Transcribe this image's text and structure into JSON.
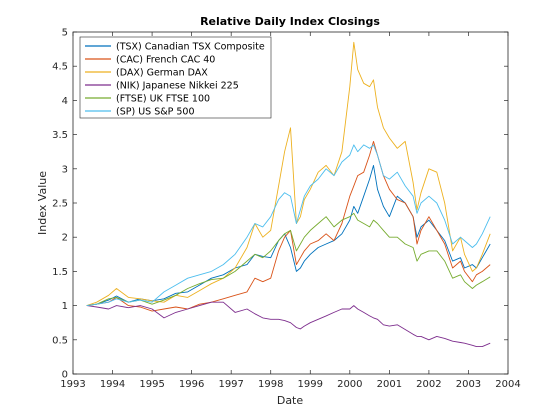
{
  "chart_data": {
    "type": "line",
    "title": "Relative Daily Index Closings",
    "xlabel": "Date",
    "ylabel": "Index Value",
    "xlim": [
      1993,
      2004
    ],
    "ylim": [
      0,
      5
    ],
    "xticks": [
      "1993",
      "1994",
      "1995",
      "1996",
      "1997",
      "1998",
      "1999",
      "2000",
      "2001",
      "2002",
      "2003",
      "2004"
    ],
    "yticks": [
      "0",
      "0.5",
      "1",
      "1.5",
      "2",
      "2.5",
      "3",
      "3.5",
      "4",
      "4.5",
      "5"
    ],
    "grid": false,
    "legend_position": "top-left",
    "x": [
      1993.35,
      1993.6,
      1993.9,
      1994.1,
      1994.4,
      1994.7,
      1995.0,
      1995.3,
      1995.6,
      1995.9,
      1996.2,
      1996.5,
      1996.8,
      1997.1,
      1997.4,
      1997.6,
      1997.8,
      1998.0,
      1998.2,
      1998.35,
      1998.5,
      1998.65,
      1998.75,
      1998.85,
      1999.0,
      1999.2,
      1999.4,
      1999.6,
      1999.8,
      2000.0,
      2000.1,
      2000.2,
      2000.35,
      2000.5,
      2000.6,
      2000.7,
      2000.85,
      2001.0,
      2001.2,
      2001.4,
      2001.6,
      2001.7,
      2001.8,
      2002.0,
      2002.2,
      2002.4,
      2002.6,
      2002.8,
      2002.9,
      2003.1,
      2003.2,
      2003.35,
      2003.55
    ],
    "series": [
      {
        "name": "(TSX) Canadian TSX Composite",
        "color": "#0072BD",
        "values": [
          1.0,
          1.02,
          1.08,
          1.14,
          1.05,
          1.1,
          1.07,
          1.1,
          1.18,
          1.2,
          1.3,
          1.4,
          1.45,
          1.55,
          1.6,
          1.75,
          1.72,
          1.7,
          1.95,
          2.05,
          1.85,
          1.5,
          1.55,
          1.65,
          1.75,
          1.85,
          1.9,
          1.95,
          2.05,
          2.25,
          2.45,
          2.35,
          2.6,
          2.85,
          3.05,
          2.7,
          2.45,
          2.3,
          2.6,
          2.5,
          2.3,
          2.0,
          2.15,
          2.25,
          2.1,
          1.95,
          1.65,
          1.7,
          1.55,
          1.6,
          1.55,
          1.7,
          1.9
        ]
      },
      {
        "name": "(CAC) French CAC 40",
        "color": "#D95319",
        "values": [
          1.0,
          1.02,
          1.05,
          1.12,
          1.0,
          0.98,
          0.92,
          0.95,
          0.98,
          0.95,
          1.02,
          1.05,
          1.1,
          1.15,
          1.2,
          1.4,
          1.35,
          1.4,
          1.8,
          2.0,
          2.1,
          1.6,
          1.7,
          1.8,
          1.9,
          1.95,
          2.05,
          1.95,
          2.2,
          2.6,
          2.75,
          2.9,
          2.95,
          3.2,
          3.4,
          3.2,
          2.9,
          2.7,
          2.55,
          2.5,
          2.3,
          1.9,
          2.1,
          2.3,
          2.1,
          1.9,
          1.55,
          1.65,
          1.5,
          1.35,
          1.45,
          1.5,
          1.6
        ]
      },
      {
        "name": "(DAX) German DAX",
        "color": "#EDB120",
        "values": [
          1.0,
          1.05,
          1.15,
          1.25,
          1.12,
          1.1,
          1.07,
          1.05,
          1.15,
          1.12,
          1.22,
          1.32,
          1.4,
          1.55,
          1.85,
          2.2,
          2.0,
          2.1,
          2.75,
          3.25,
          3.6,
          2.2,
          2.3,
          2.55,
          2.7,
          2.95,
          3.05,
          2.9,
          3.25,
          4.2,
          4.85,
          4.45,
          4.25,
          4.2,
          4.3,
          3.9,
          3.6,
          3.45,
          3.3,
          3.4,
          2.8,
          2.4,
          2.65,
          3.0,
          2.95,
          2.5,
          1.8,
          2.0,
          1.75,
          1.5,
          1.55,
          1.75,
          2.05
        ]
      },
      {
        "name": "(NIK) Japanese Nikkei 225",
        "color": "#7E2F8E",
        "values": [
          1.0,
          0.98,
          0.95,
          1.0,
          0.97,
          1.0,
          0.95,
          0.82,
          0.9,
          0.95,
          1.0,
          1.05,
          1.05,
          0.9,
          0.95,
          0.88,
          0.82,
          0.8,
          0.8,
          0.78,
          0.75,
          0.68,
          0.66,
          0.7,
          0.75,
          0.8,
          0.85,
          0.9,
          0.95,
          0.95,
          1.0,
          0.95,
          0.9,
          0.85,
          0.82,
          0.8,
          0.72,
          0.7,
          0.72,
          0.65,
          0.58,
          0.55,
          0.55,
          0.5,
          0.55,
          0.52,
          0.48,
          0.46,
          0.45,
          0.42,
          0.4,
          0.4,
          0.45
        ]
      },
      {
        "name": "(FTSE) UK FTSE 100",
        "color": "#77AC30",
        "values": [
          1.0,
          1.02,
          1.1,
          1.12,
          1.05,
          1.08,
          1.02,
          1.08,
          1.15,
          1.25,
          1.32,
          1.38,
          1.4,
          1.5,
          1.65,
          1.75,
          1.7,
          1.8,
          1.95,
          2.05,
          2.1,
          1.8,
          1.9,
          2.0,
          2.1,
          2.2,
          2.3,
          2.15,
          2.25,
          2.3,
          2.35,
          2.25,
          2.2,
          2.15,
          2.25,
          2.2,
          2.1,
          2.0,
          2.0,
          1.9,
          1.85,
          1.65,
          1.75,
          1.8,
          1.8,
          1.65,
          1.4,
          1.45,
          1.35,
          1.25,
          1.3,
          1.35,
          1.42
        ]
      },
      {
        "name": "(SP) US S&P 500",
        "color": "#4DBEEE",
        "values": [
          1.0,
          1.02,
          1.05,
          1.1,
          1.05,
          1.08,
          1.05,
          1.2,
          1.3,
          1.4,
          1.45,
          1.5,
          1.6,
          1.75,
          2.0,
          2.2,
          2.15,
          2.3,
          2.55,
          2.65,
          2.6,
          2.2,
          2.4,
          2.6,
          2.75,
          2.85,
          3.0,
          2.9,
          3.1,
          3.2,
          3.35,
          3.25,
          3.35,
          3.3,
          3.35,
          3.2,
          2.9,
          2.85,
          2.95,
          2.75,
          2.6,
          2.35,
          2.5,
          2.6,
          2.5,
          2.25,
          1.9,
          2.0,
          1.95,
          1.85,
          1.9,
          2.05,
          2.3
        ]
      }
    ]
  }
}
